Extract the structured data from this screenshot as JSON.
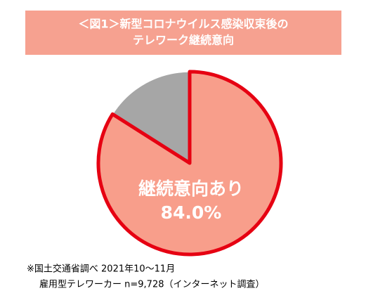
{
  "chart_data": {
    "type": "pie",
    "title": [
      "＜図1＞新型コロナウイルス感染収束後の",
      "テレワーク継続意向"
    ],
    "categories": [
      "継続意向あり",
      null
    ],
    "values": [
      84.0,
      16.0
    ],
    "value_labels": [
      "84.0%",
      null
    ],
    "colors": [
      "#f89e8b",
      "#a6a6a6"
    ],
    "edgecolors": [
      "#e60012",
      "#ffffff"
    ],
    "notes": [
      "※国土交通省調べ 2021年10〜11月",
      "雇用型テレワーカー n=9,728（インターネット調査）"
    ]
  }
}
